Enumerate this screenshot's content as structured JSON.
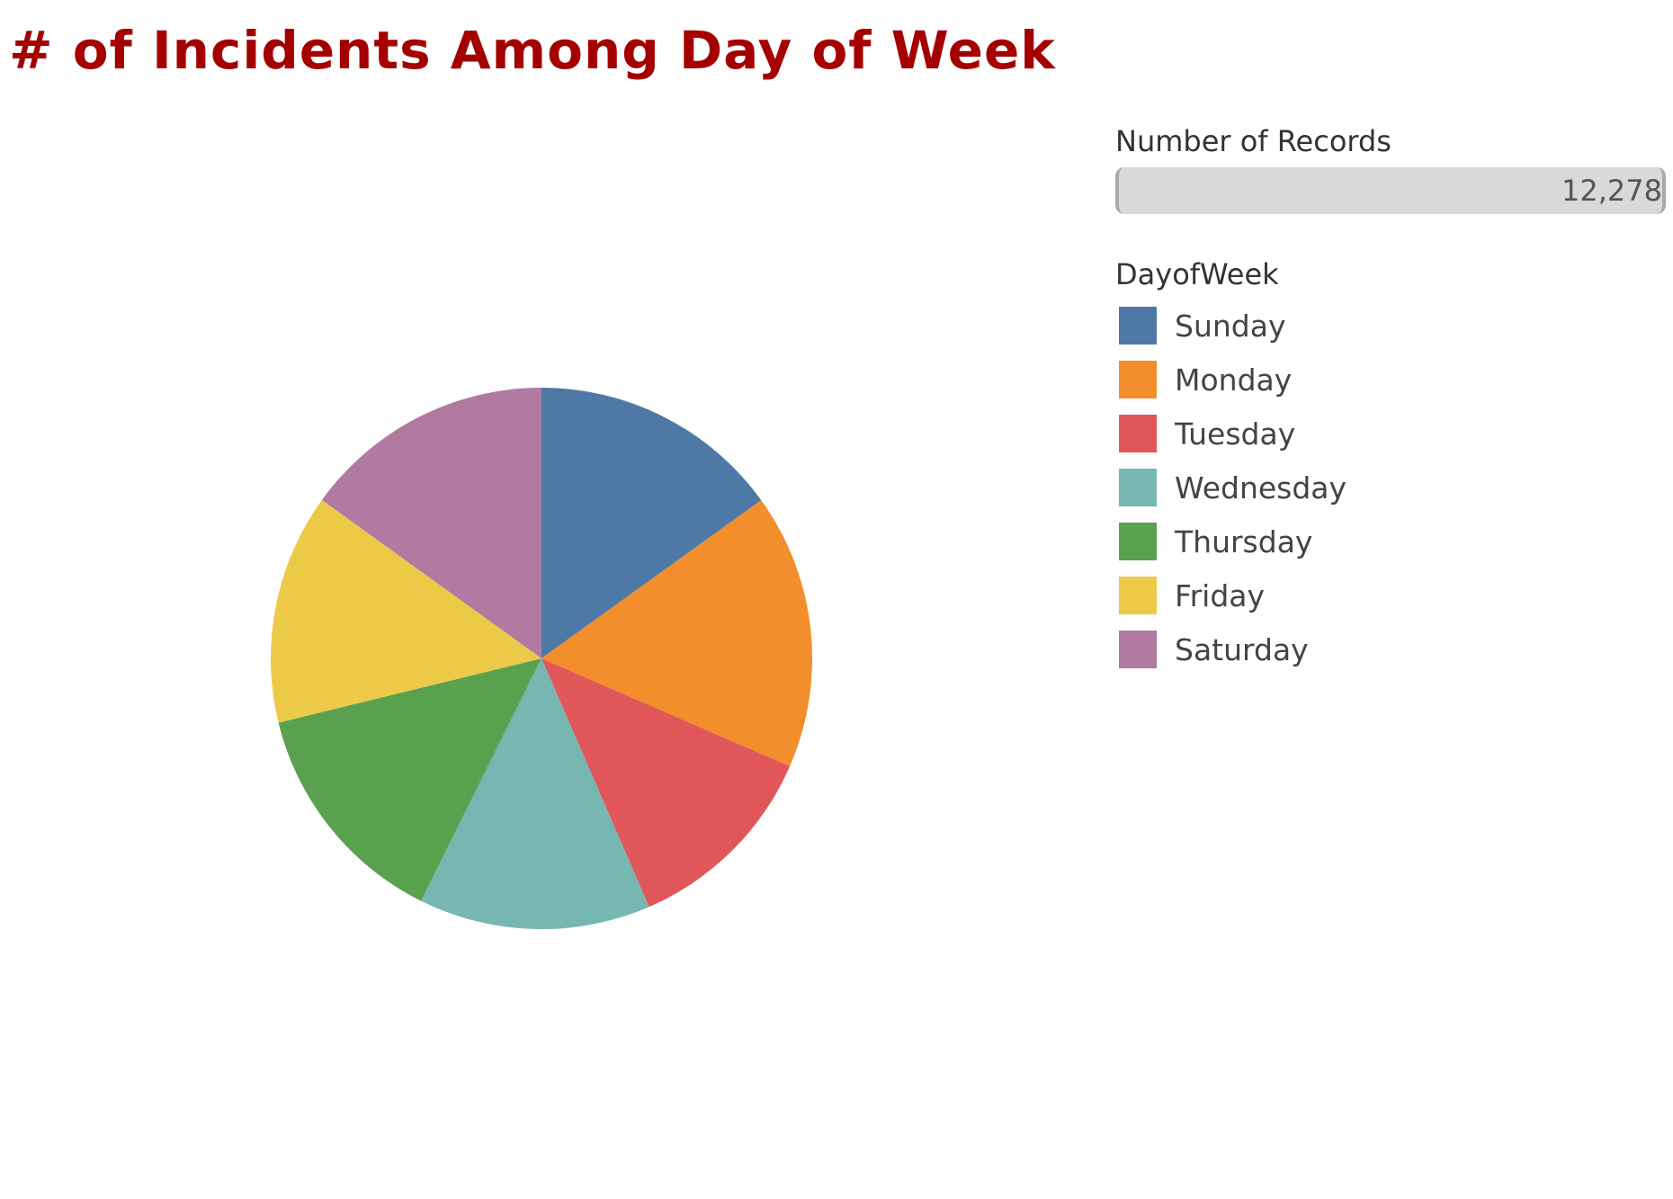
{
  "chart_data": {
    "type": "pie",
    "title": "# of Incidents Among Day of Week",
    "size_legend": {
      "title": "Number of Records",
      "max_value": "12,278"
    },
    "color_legend": {
      "title": "DayofWeek"
    },
    "slices": [
      {
        "label": "Sunday",
        "value": 1850,
        "color": "#4e79a7"
      },
      {
        "label": "Monday",
        "value": 2020,
        "color": "#f28e2b"
      },
      {
        "label": "Tuesday",
        "value": 1470,
        "color": "#e15759"
      },
      {
        "label": "Wednesday",
        "value": 1700,
        "color": "#76b7b2"
      },
      {
        "label": "Thursday",
        "value": 1700,
        "color": "#59a14f"
      },
      {
        "label": "Friday",
        "value": 1690,
        "color": "#edc948"
      },
      {
        "label": "Saturday",
        "value": 1848,
        "color": "#b07aa1"
      }
    ]
  }
}
